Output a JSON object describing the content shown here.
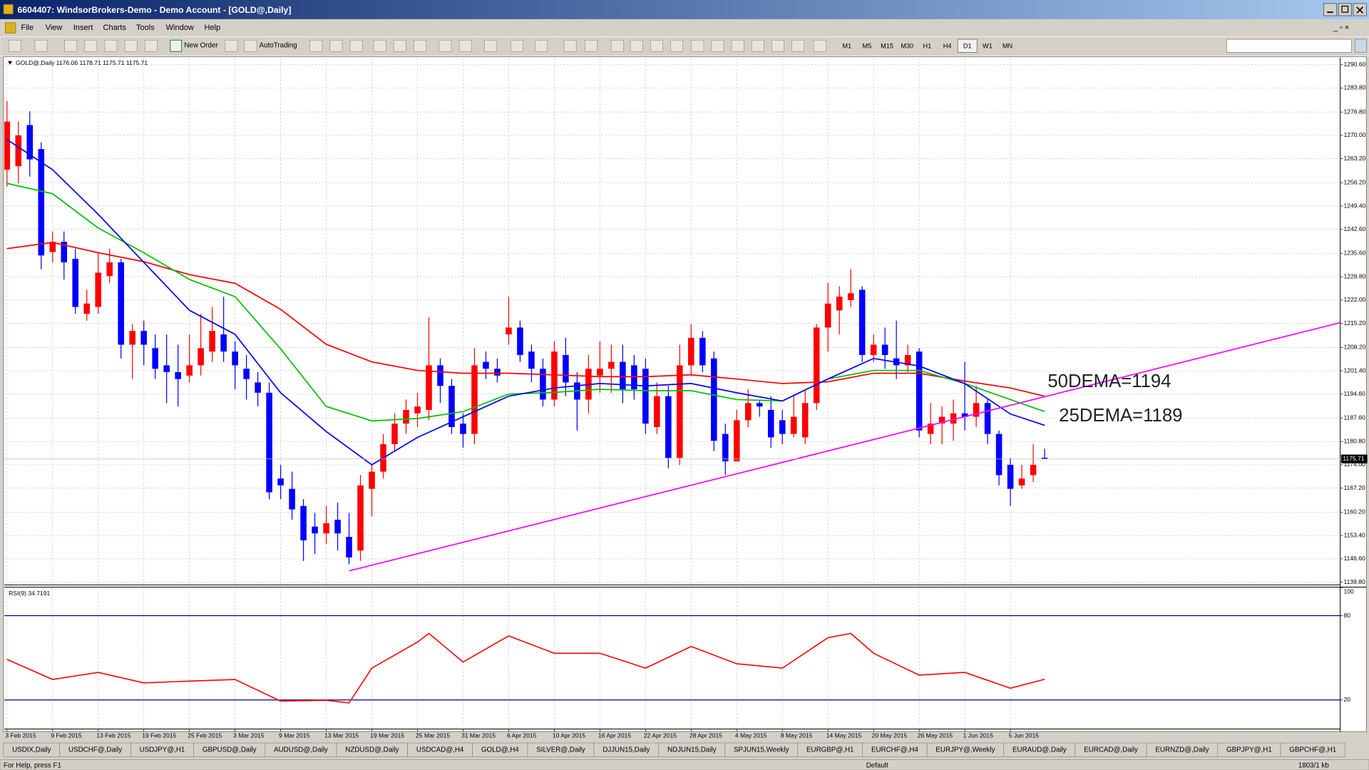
{
  "window": {
    "title": "6604407: WindsorBrokers-Demo - Demo Account - [GOLD@,Daily]"
  },
  "menu": [
    "File",
    "View",
    "Insert",
    "Charts",
    "Tools",
    "Window",
    "Help"
  ],
  "toolbar": {
    "new_order": "New Order",
    "auto_trading": "AutoTrading",
    "timeframes": [
      "M1",
      "M5",
      "M15",
      "M30",
      "H1",
      "H4",
      "D1",
      "W1",
      "MN"
    ],
    "active_timeframe": "D1"
  },
  "chart_data": [
    {
      "type": "candlestick",
      "info": "GOLD@,Daily  1176.06 1178.71 1175.71 1175.71",
      "up_color": "#ff0000",
      "down_color": "#0000ff",
      "categories": [
        "3 Feb 2015",
        null,
        null,
        null,
        "9 Feb 2015",
        null,
        null,
        null,
        "13 Feb 2015",
        null,
        null,
        null,
        "19 Feb 2015",
        null,
        null,
        null,
        "25 Feb 2015",
        null,
        null,
        null,
        "3 Mar 2015",
        null,
        null,
        null,
        "9 Mar 2015",
        null,
        null,
        null,
        "13 Mar 2015",
        null,
        null,
        null,
        "19 Mar 2015",
        null,
        null,
        null,
        "25 Mar 2015",
        null,
        null,
        null,
        "31 Mar 2015",
        null,
        null,
        null,
        "6 Apr 2015",
        null,
        null,
        null,
        "10 Apr 2015",
        null,
        null,
        null,
        "16 Apr 2015",
        null,
        null,
        null,
        "22 Apr 2015",
        null,
        null,
        null,
        "28 Apr 2015",
        null,
        null,
        null,
        "4 May 2015",
        null,
        null,
        null,
        "8 May 2015",
        null,
        null,
        null,
        "14 May 2015",
        null,
        null,
        null,
        "20 May 2015",
        null,
        null,
        null,
        "26 May 2015",
        null,
        null,
        null,
        "1 Jun 2015",
        null,
        null,
        null,
        "5 Jun 2015",
        null,
        null,
        null
      ],
      "open": [
        1260,
        1261,
        1273,
        1266,
        1236,
        1239,
        1234,
        1218,
        1220,
        1229,
        1233,
        1209,
        1213,
        1208,
        1203,
        1201,
        1200,
        1203,
        1207,
        1212,
        1207,
        1202,
        1198,
        1195,
        1170,
        1167,
        1162,
        1156,
        1154,
        1158,
        1153,
        1149,
        1167,
        1172,
        1180,
        1186,
        1189,
        1190,
        1203,
        1197,
        1186,
        1183,
        1204,
        1202,
        1212,
        1214,
        1207,
        1202,
        1193,
        1206,
        1198,
        1193,
        1200,
        1202,
        1204,
        1203,
        1202,
        1185,
        1194,
        1176,
        1203,
        1211,
        1205,
        1183,
        1175,
        1187,
        1192,
        1190,
        1187,
        1183,
        1182,
        1192,
        1214,
        1219,
        1222,
        1225,
        1206,
        1209,
        1205,
        1203,
        1207,
        1183,
        1186,
        1186,
        1189,
        1188,
        1192,
        1183,
        1174,
        1168,
        1171,
        1176.06
      ],
      "high": [
        1280,
        1274,
        1277,
        1268,
        1242,
        1242,
        1237,
        1225,
        1236,
        1237,
        1234,
        1215,
        1216,
        1212,
        1212,
        1209,
        1212,
        1218,
        1220,
        1223,
        1210,
        1206,
        1201,
        1198,
        1174,
        1172,
        1164,
        1160,
        1162,
        1163,
        1160,
        1171,
        1174,
        1183,
        1189,
        1193,
        1195,
        1217,
        1205,
        1199,
        1189,
        1208,
        1207,
        1205,
        1223,
        1216,
        1209,
        1205,
        1210,
        1211,
        1201,
        1206,
        1210,
        1209,
        1209,
        1206,
        1205,
        1198,
        1197,
        1209,
        1215,
        1213,
        1207,
        1186,
        1190,
        1196,
        1193,
        1194,
        1190,
        1194,
        1196,
        1215,
        1227,
        1226,
        1231,
        1226,
        1212,
        1214,
        1216,
        1209,
        1208,
        1192,
        1191,
        1193,
        1204,
        1197,
        1193,
        1184,
        1176,
        1174,
        1180,
        1178.71
      ],
      "low": [
        1255,
        1256,
        1258,
        1231,
        1233,
        1228,
        1218,
        1216,
        1218,
        1227,
        1205,
        1199,
        1203,
        1199,
        1192,
        1191,
        1198,
        1200,
        1204,
        1204,
        1196,
        1193,
        1191,
        1164,
        1164,
        1158,
        1146,
        1148,
        1151,
        1149,
        1145,
        1146,
        1159,
        1170,
        1178,
        1183,
        1185,
        1187,
        1192,
        1183,
        1179,
        1180,
        1199,
        1198,
        1209,
        1204,
        1198,
        1191,
        1191,
        1194,
        1184,
        1189,
        1195,
        1195,
        1192,
        1193,
        1183,
        1183,
        1173,
        1174,
        1200,
        1201,
        1178,
        1171,
        1175,
        1185,
        1188,
        1179,
        1180,
        1182,
        1180,
        1190,
        1207,
        1212,
        1220,
        1204,
        1204,
        1202,
        1199,
        1201,
        1182,
        1180,
        1180,
        1181,
        1184,
        1185,
        1180,
        1168,
        1162,
        1167,
        1169,
        1175.71
      ],
      "close": [
        1274,
        1270,
        1263,
        1235,
        1239,
        1233,
        1220,
        1221,
        1230,
        1233,
        1209,
        1213,
        1209,
        1202,
        1201,
        1199,
        1203,
        1208,
        1213,
        1207,
        1203,
        1199,
        1195,
        1166,
        1168,
        1161,
        1152,
        1154,
        1157,
        1154,
        1147,
        1168,
        1172,
        1180,
        1186,
        1190,
        1191,
        1203,
        1197,
        1185,
        1183,
        1203,
        1202,
        1200,
        1214,
        1206,
        1202,
        1193,
        1207,
        1198,
        1193,
        1202,
        1202,
        1204,
        1196,
        1196,
        1186,
        1194,
        1176,
        1203,
        1211,
        1203,
        1181,
        1175,
        1187,
        1192,
        1191,
        1182,
        1183,
        1188,
        1192,
        1214,
        1221,
        1223,
        1224,
        1206,
        1209,
        1206,
        1203,
        1206,
        1184,
        1186,
        1188,
        1189,
        1188,
        1192,
        1183,
        1171,
        1167,
        1170,
        1174,
        1175.71
      ],
      "ylim": [
        1139.0,
        1292.4
      ],
      "yticks": [
        {
          "value": 1290.6,
          "label": "1290.60"
        },
        {
          "value": 1283.8,
          "label": "1283.80"
        },
        {
          "value": 1276.8,
          "label": "1276.80"
        },
        {
          "value": 1270,
          "label": "1270.00"
        },
        {
          "value": 1263.2,
          "label": "1263.20"
        },
        {
          "value": 1256.2,
          "label": "1256.20"
        },
        {
          "value": 1249.4,
          "label": "1249.40"
        },
        {
          "value": 1242.6,
          "label": "1242.60"
        },
        {
          "value": 1235.6,
          "label": "1235.60"
        },
        {
          "value": 1228.8,
          "label": "1228.80"
        },
        {
          "value": 1222,
          "label": "1222.00"
        },
        {
          "value": 1215.2,
          "label": "1215.20"
        },
        {
          "value": 1208.2,
          "label": "1208.20"
        },
        {
          "value": 1201.4,
          "label": "1201.40"
        },
        {
          "value": 1194.6,
          "label": "1194.60"
        },
        {
          "value": 1187.6,
          "label": "1187.60"
        },
        {
          "value": 1180.8,
          "label": "1180.80"
        },
        {
          "value": 1174,
          "label": "1174.00"
        },
        {
          "value": 1167.2,
          "label": "1167.20"
        },
        {
          "value": 1160.2,
          "label": "1160.20"
        },
        {
          "value": 1153.4,
          "label": "1153.40"
        },
        {
          "value": 1146.6,
          "label": "1146.60"
        },
        {
          "value": 1139.8,
          "label": "1139.80"
        }
      ],
      "grid": true,
      "lines": [
        {
          "color": "#ff0000",
          "x": [
            0,
            4,
            8,
            12,
            16,
            20,
            24,
            28,
            32,
            36,
            40,
            44,
            48,
            52,
            56,
            60,
            64,
            68,
            72,
            76,
            80,
            84,
            88,
            91
          ],
          "values": [
            1237,
            1238.8,
            1235.8,
            1233.2,
            1229.4,
            1226.9,
            1219.3,
            1209.1,
            1204,
            1201.5,
            1200.7,
            1200.7,
            1200.2,
            1199.7,
            1199.7,
            1200.2,
            1199,
            1197.7,
            1198.2,
            1200.7,
            1200.7,
            1198.4,
            1196.4,
            1194
          ]
        },
        {
          "color": "#00c000",
          "x": [
            0,
            4,
            8,
            12,
            16,
            20,
            24,
            28,
            32,
            36,
            40,
            44,
            48,
            52,
            56,
            60,
            64,
            68,
            72,
            76,
            80,
            84,
            88,
            91
          ],
          "values": [
            1256,
            1253,
            1243,
            1235.8,
            1228,
            1223,
            1207.8,
            1191,
            1186.8,
            1187.5,
            1189.5,
            1194.6,
            1195.1,
            1196,
            1195.6,
            1195.6,
            1193,
            1192.6,
            1199,
            1201.5,
            1201.5,
            1197.7,
            1193,
            1189.5
          ]
        },
        {
          "color": "#0000ff",
          "x": [
            0,
            4,
            8,
            12,
            16,
            20,
            24,
            28,
            32,
            36,
            40,
            44,
            48,
            52,
            56,
            60,
            64,
            68,
            72,
            76,
            80,
            84,
            88,
            91
          ],
          "values": [
            1268.8,
            1260,
            1247,
            1233,
            1219,
            1212,
            1195,
            1183.7,
            1174,
            1182,
            1188,
            1194,
            1196.4,
            1197.7,
            1197,
            1197.7,
            1195,
            1192.6,
            1199,
            1205,
            1202.8,
            1197.7,
            1188.8,
            1185.5
          ]
        },
        {
          "color": "#ff00ff",
          "x": [
            30,
            116.9
          ],
          "values": [
            1143.1,
            1215.4
          ]
        }
      ],
      "annotations": [
        "50DEMA=1194",
        "25DEMA=1189"
      ]
    },
    {
      "type": "line",
      "title": "RSI(9) 34.7191",
      "color": "#ff0000",
      "x": [
        0,
        4,
        8,
        12,
        16,
        20,
        24,
        28,
        30,
        32,
        36,
        37,
        40,
        44,
        48,
        52,
        56,
        60,
        64,
        68,
        72,
        74,
        76,
        80,
        84,
        88,
        91
      ],
      "values": [
        48.9,
        34.6,
        39.6,
        32.2,
        33.4,
        34.6,
        19.2,
        19.8,
        17.9,
        42.7,
        61.2,
        67.4,
        47,
        65.6,
        53.2,
        53.2,
        42.7,
        58.1,
        45.8,
        42.7,
        64.3,
        67.4,
        53.2,
        37.7,
        39.6,
        28.4,
        34.7191
      ],
      "ylim": [
        0,
        100
      ],
      "yticks": [
        20,
        80,
        100
      ],
      "levels": [
        20,
        80
      ],
      "level_color": "#00008b"
    }
  ],
  "tabs": [
    "USDIX,Daily",
    "USDCHF@,Daily",
    "USDJPY@,H1",
    "GBPUSD@,Daily",
    "AUDUSD@,Daily",
    "NZDUSD@,Daily",
    "USDCAD@,H4",
    "GOLD@,H4",
    "SILVER@,Daily",
    "DJJUN15,Daily",
    "NDJUN15,Daily",
    "SPJUN15,Weekly",
    "EURGBP@,H1",
    "EURCHF@,H4",
    "EURJPY@,Weekly",
    "EURAUD@,Daily",
    "EURCAD@,Daily",
    "EURNZD@,Daily",
    "GBPJPY@,H1",
    "GBPCHF@,H1"
  ],
  "status": {
    "help": "For Help, press F1",
    "profile": "Default",
    "traffic": "1803/1 kb"
  }
}
